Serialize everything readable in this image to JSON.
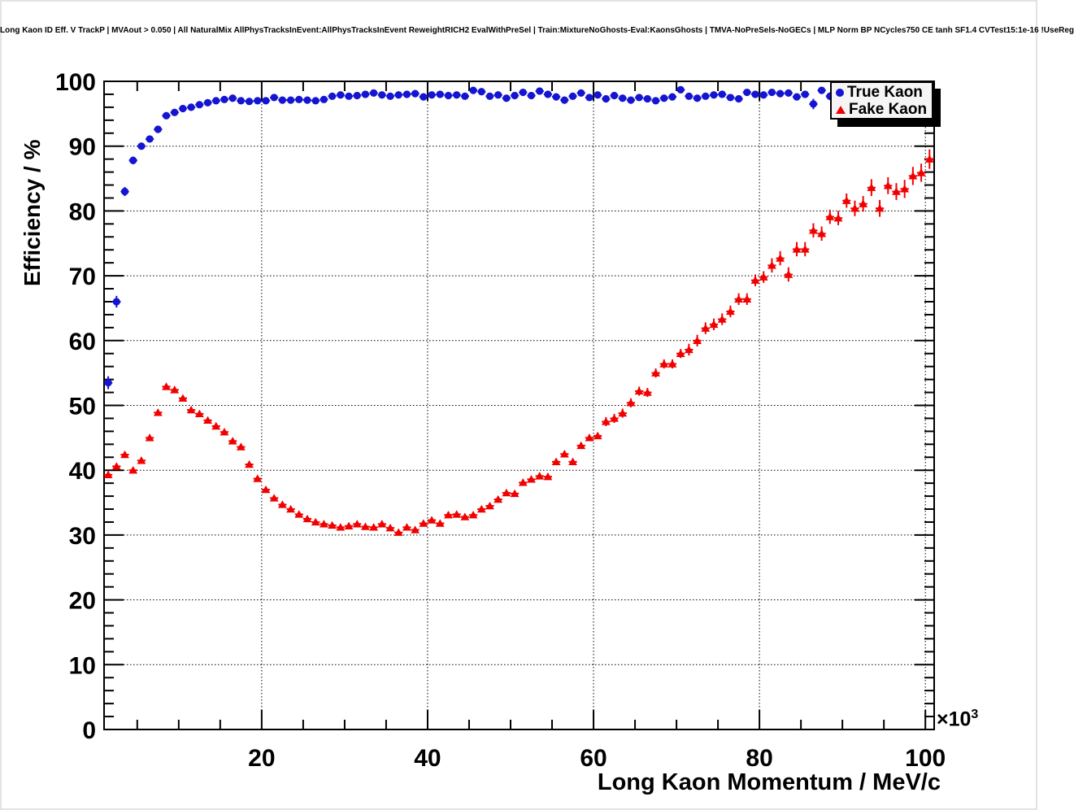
{
  "title": "Long Kaon ID Eff. V TrackP | MVAout > 0.050 | All NaturalMix AllPhysTracksInEvent:AllPhysTracksInEvent ReweightRICH2 EvalWithPreSel | Train:MixtureNoGhosts-Eval:KaonsGhosts | TMVA-NoPreSels-NoGECs | MLP Norm BP NCycles750 CE tanh SF1.4 CVTest15:1e-16 !UseReg",
  "axes": {
    "x_title": "Long Kaon Momentum / MeV/c",
    "y_title": "Efficiency / %",
    "x_exponent_base": "×10",
    "x_exponent_power": "3"
  },
  "legend": {
    "entries": [
      {
        "label": "True Kaon",
        "marker": "circle",
        "color": "#1414d2"
      },
      {
        "label": "Fake Kaon",
        "marker": "triangle",
        "color": "#f20000"
      }
    ]
  },
  "chart_data": {
    "type": "scatter",
    "title": "Long Kaon ID Eff. V TrackP",
    "xlabel": "Long Kaon Momentum / MeV/c",
    "ylabel": "Efficiency / %",
    "x_units_exponent": "x10^3",
    "xlim": [
      1.0,
      101.06
    ],
    "ylim": [
      0,
      100
    ],
    "x_major_ticks": [
      20,
      40,
      60,
      80,
      100
    ],
    "x_minor_step": 5,
    "y_major_ticks": [
      0,
      10,
      20,
      30,
      40,
      50,
      60,
      70,
      80,
      90,
      100
    ],
    "y_minor_step": 2,
    "grid": true,
    "grid_style": "dotted",
    "legend_position": "top-right",
    "x_bin_half_width": 0.5,
    "series": [
      {
        "name": "True Kaon",
        "marker": "circle",
        "color": "#1414d2",
        "x": [
          1.5,
          2.5,
          3.5,
          4.5,
          5.5,
          6.5,
          7.5,
          8.5,
          9.5,
          10.5,
          11.5,
          12.5,
          13.5,
          14.5,
          15.5,
          16.5,
          17.5,
          18.5,
          19.5,
          20.5,
          21.5,
          22.5,
          23.5,
          24.5,
          25.5,
          26.5,
          27.5,
          28.5,
          29.5,
          30.5,
          31.5,
          32.5,
          33.5,
          34.5,
          35.5,
          36.5,
          37.5,
          38.5,
          39.5,
          40.5,
          41.5,
          42.5,
          43.5,
          44.5,
          45.5,
          46.5,
          47.5,
          48.5,
          49.5,
          50.5,
          51.5,
          52.5,
          53.5,
          54.5,
          55.5,
          56.5,
          57.5,
          58.5,
          59.5,
          60.5,
          61.5,
          62.5,
          63.5,
          64.5,
          65.5,
          66.5,
          67.5,
          68.5,
          69.5,
          70.5,
          71.5,
          72.5,
          73.5,
          74.5,
          75.5,
          76.5,
          77.5,
          78.5,
          79.5,
          80.5,
          81.5,
          82.5,
          83.5,
          84.5,
          85.5,
          86.5,
          87.5,
          88.5
        ],
        "y": [
          53.5,
          66.0,
          83.0,
          87.8,
          90.0,
          91.1,
          92.6,
          94.7,
          95.2,
          95.8,
          96.0,
          96.4,
          96.7,
          97.0,
          97.2,
          97.4,
          97.0,
          96.9,
          97.0,
          97.0,
          97.5,
          97.1,
          97.1,
          97.2,
          97.1,
          97.0,
          97.2,
          97.7,
          97.9,
          97.7,
          97.8,
          98.0,
          98.2,
          97.9,
          97.7,
          97.9,
          98.0,
          98.1,
          97.6,
          97.9,
          98.0,
          97.8,
          97.9,
          97.7,
          98.6,
          98.4,
          97.7,
          97.9,
          97.4,
          97.8,
          98.3,
          97.8,
          98.5,
          98.0,
          97.6,
          97.1,
          97.7,
          98.2,
          97.5,
          97.9,
          97.3,
          97.8,
          97.4,
          97.1,
          97.5,
          97.3,
          97.0,
          97.4,
          97.6,
          98.7,
          97.7,
          97.4,
          97.7,
          97.9,
          98.0,
          97.5,
          97.3,
          98.3,
          98.0,
          97.9,
          98.3,
          98.1,
          98.2,
          97.6,
          98.0,
          96.5,
          98.6,
          97.7
        ],
        "y_err": [
          1.0,
          0.9,
          0.7,
          0.6,
          0.5,
          0.45,
          0.4,
          0.4,
          0.35,
          0.35,
          0.3,
          0.3,
          0.3,
          0.3,
          0.3,
          0.3,
          0.3,
          0.3,
          0.3,
          0.3,
          0.3,
          0.3,
          0.3,
          0.3,
          0.3,
          0.3,
          0.3,
          0.3,
          0.3,
          0.3,
          0.3,
          0.3,
          0.3,
          0.3,
          0.3,
          0.3,
          0.3,
          0.3,
          0.3,
          0.3,
          0.3,
          0.3,
          0.3,
          0.3,
          0.3,
          0.3,
          0.3,
          0.3,
          0.3,
          0.3,
          0.3,
          0.3,
          0.3,
          0.3,
          0.3,
          0.3,
          0.3,
          0.3,
          0.3,
          0.3,
          0.35,
          0.35,
          0.35,
          0.35,
          0.35,
          0.35,
          0.35,
          0.35,
          0.35,
          0.35,
          0.35,
          0.35,
          0.35,
          0.35,
          0.35,
          0.35,
          0.35,
          0.35,
          0.35,
          0.35,
          0.4,
          0.4,
          0.45,
          0.5,
          0.55,
          0.8,
          0.5,
          0.6
        ]
      },
      {
        "name": "Fake Kaon",
        "marker": "triangle",
        "color": "#f20000",
        "x": [
          1.5,
          2.5,
          3.5,
          4.5,
          5.5,
          6.5,
          7.5,
          8.5,
          9.5,
          10.5,
          11.5,
          12.5,
          13.5,
          14.5,
          15.5,
          16.5,
          17.5,
          18.5,
          19.5,
          20.5,
          21.5,
          22.5,
          23.5,
          24.5,
          25.5,
          26.5,
          27.5,
          28.5,
          29.5,
          30.5,
          31.5,
          32.5,
          33.5,
          34.5,
          35.5,
          36.5,
          37.5,
          38.5,
          39.5,
          40.5,
          41.5,
          42.5,
          43.5,
          44.5,
          45.5,
          46.5,
          47.5,
          48.5,
          49.5,
          50.5,
          51.5,
          52.5,
          53.5,
          54.5,
          55.5,
          56.5,
          57.5,
          58.5,
          59.5,
          60.5,
          61.5,
          62.5,
          63.5,
          64.5,
          65.5,
          66.5,
          67.5,
          68.5,
          69.5,
          70.5,
          71.5,
          72.5,
          73.5,
          74.5,
          75.5,
          76.5,
          77.5,
          78.5,
          79.5,
          80.5,
          81.5,
          82.5,
          83.5,
          84.5,
          85.5,
          86.5,
          87.5,
          88.5,
          89.5,
          90.5,
          91.5,
          92.5,
          93.5,
          94.5,
          95.5,
          96.5,
          97.5,
          98.5,
          99.5,
          100.5
        ],
        "y": [
          39.3,
          40.6,
          42.4,
          40.0,
          41.5,
          45.0,
          48.9,
          52.9,
          52.4,
          51.1,
          49.3,
          48.7,
          47.7,
          46.8,
          45.9,
          44.5,
          43.6,
          40.9,
          38.7,
          37.0,
          35.7,
          34.7,
          34.0,
          33.2,
          32.5,
          32.0,
          31.7,
          31.5,
          31.2,
          31.4,
          31.7,
          31.3,
          31.2,
          31.7,
          31.1,
          30.4,
          31.2,
          30.8,
          31.8,
          32.3,
          31.8,
          33.1,
          33.2,
          32.8,
          33.1,
          34.0,
          34.5,
          35.5,
          36.5,
          36.4,
          38.1,
          38.6,
          39.1,
          39.0,
          41.3,
          42.5,
          41.3,
          43.8,
          45.0,
          45.3,
          47.5,
          48.0,
          48.8,
          50.4,
          52.2,
          52.0,
          55.0,
          56.4,
          56.4,
          58.0,
          58.6,
          60.0,
          61.9,
          62.5,
          63.3,
          64.5,
          66.4,
          66.4,
          69.3,
          69.8,
          71.6,
          72.7,
          70.2,
          74.1,
          74.1,
          77.0,
          76.5,
          79.1,
          78.9,
          81.6,
          80.4,
          81.1,
          83.6,
          80.4,
          83.9,
          83.0,
          83.4,
          85.4,
          85.9,
          88.0
        ],
        "y_err": [
          0.5,
          0.4,
          0.45,
          0.4,
          0.4,
          0.4,
          0.45,
          0.45,
          0.45,
          0.4,
          0.4,
          0.4,
          0.4,
          0.4,
          0.4,
          0.4,
          0.4,
          0.4,
          0.4,
          0.4,
          0.35,
          0.35,
          0.35,
          0.35,
          0.35,
          0.35,
          0.35,
          0.35,
          0.35,
          0.35,
          0.35,
          0.35,
          0.35,
          0.35,
          0.35,
          0.35,
          0.35,
          0.35,
          0.35,
          0.35,
          0.4,
          0.4,
          0.4,
          0.4,
          0.4,
          0.4,
          0.4,
          0.4,
          0.4,
          0.4,
          0.5,
          0.5,
          0.5,
          0.5,
          0.5,
          0.5,
          0.5,
          0.5,
          0.5,
          0.5,
          0.7,
          0.7,
          0.7,
          0.7,
          0.7,
          0.7,
          0.7,
          0.7,
          0.7,
          0.7,
          0.9,
          0.9,
          0.9,
          0.9,
          0.9,
          0.9,
          0.9,
          0.9,
          0.9,
          0.9,
          1.1,
          1.1,
          1.1,
          1.1,
          1.1,
          1.1,
          1.1,
          1.1,
          1.1,
          1.1,
          1.2,
          1.2,
          1.3,
          1.3,
          1.3,
          1.3,
          1.4,
          1.4,
          1.4,
          1.5
        ]
      }
    ]
  }
}
